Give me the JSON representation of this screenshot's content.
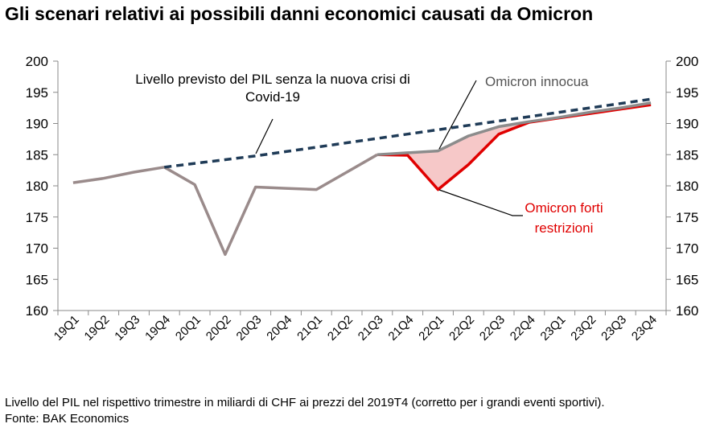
{
  "title": "Gli scenari relativi ai possibili danni economici causati da Omicron",
  "footnote": "Livello del PIL nel rispettivo trimestre in miliardi di CHF ai prezzi del 2019T4 (corretto per i grandi eventi sportivi).",
  "source": "Fonte: BAK Economics",
  "colors": {
    "baseline": "#1f3b57",
    "mild": "#8c8c8c",
    "strict": "#e00000",
    "actual": "#9a8b8b",
    "gap_fill": "#f6c8c8",
    "axis": "#888888"
  },
  "chart_data": {
    "type": "line",
    "categories": [
      "19Q1",
      "19Q2",
      "19Q3",
      "19Q4",
      "20Q1",
      "20Q2",
      "20Q3",
      "20Q4",
      "21Q1",
      "21Q2",
      "21Q3",
      "21Q4",
      "22Q1",
      "22Q2",
      "22Q3",
      "22Q4",
      "23Q1",
      "23Q2",
      "23Q3",
      "23Q4"
    ],
    "ylim": [
      160,
      200
    ],
    "yticks": [
      160,
      165,
      170,
      175,
      180,
      185,
      190,
      195,
      200
    ],
    "series": [
      {
        "key": "actual",
        "values": [
          180.5,
          181.2,
          182.2,
          183.0,
          180.2,
          169.0,
          179.8,
          179.6,
          179.4,
          182.2,
          185.0,
          null,
          null,
          null,
          null,
          null,
          null,
          null,
          null,
          null
        ]
      },
      {
        "key": "baseline",
        "name": "Livello previsto del PIL senza la nuova crisi di Covid-19",
        "values": [
          null,
          null,
          null,
          183.0,
          183.6,
          184.2,
          184.8,
          185.5,
          186.2,
          186.9,
          187.6,
          188.3,
          189.0,
          189.7,
          190.4,
          191.1,
          191.8,
          192.5,
          193.2,
          193.9
        ]
      },
      {
        "key": "mild",
        "name": "Omicron innocua",
        "values": [
          null,
          null,
          null,
          null,
          null,
          null,
          null,
          null,
          null,
          null,
          185.0,
          185.3,
          185.6,
          188.0,
          189.5,
          190.3,
          191.0,
          191.8,
          192.5,
          193.3
        ]
      },
      {
        "key": "strict",
        "name": "Omicron forti restrizioni",
        "values": [
          null,
          null,
          null,
          null,
          null,
          null,
          null,
          null,
          null,
          null,
          185.0,
          184.9,
          179.4,
          183.4,
          188.3,
          190.2,
          190.9,
          191.6,
          192.3,
          193.0
        ]
      }
    ],
    "annotations": {
      "baseline_line1": "Livello previsto del PIL senza la nuova crisi di",
      "baseline_line2": "Covid-19",
      "mild_label": "Omicron innocua",
      "strict_line1": "Omicron forti",
      "strict_line2": "restrizioni"
    }
  }
}
